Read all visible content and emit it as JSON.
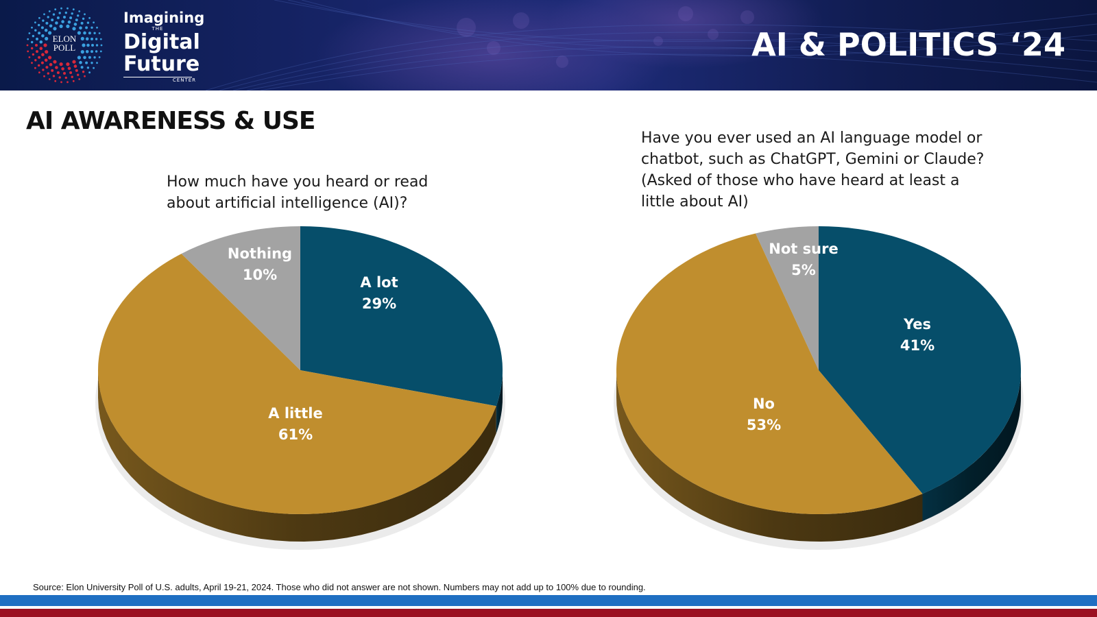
{
  "header": {
    "logo_text_line1": "ELON",
    "logo_text_line2": "POLL",
    "brand_line1": "Imagining",
    "brand_the": "THE",
    "brand_line2": "Digital",
    "brand_line3": "Future",
    "brand_center": "CENTER",
    "event_title": "AI & POLITICS ‘24"
  },
  "section_title": "AI AWARENESS & USE",
  "colors": {
    "navy": "#064e6a",
    "gold": "#c08e2e",
    "gray": "#a3a3a3"
  },
  "chart_data": [
    {
      "type": "pie",
      "title": "How much have you heard or read about artificial intelligence (AI)?",
      "title_lines": [
        "How much have you heard or read",
        "about artificial intelligence (AI)?"
      ],
      "slices": [
        {
          "label": "A lot",
          "value": 29,
          "display": "29%",
          "color": "#064e6a"
        },
        {
          "label": "A little",
          "value": 61,
          "display": "61%",
          "color": "#c08e2e"
        },
        {
          "label": "Nothing",
          "value": 10,
          "display": "10%",
          "color": "#a3a3a3"
        }
      ]
    },
    {
      "type": "pie",
      "title": "Have you ever used an AI language model or chatbot, such as ChatGPT, Gemini or Claude? (Asked of those who have heard at least a little about AI)",
      "title_lines": [
        "Have you ever used an AI language model or",
        "chatbot, such as ChatGPT, Gemini or Claude?",
        "(Asked of those who have heard at least a",
        "little about AI)"
      ],
      "slices": [
        {
          "label": "Yes",
          "value": 41,
          "display": "41%",
          "color": "#064e6a"
        },
        {
          "label": "No",
          "value": 53,
          "display": "53%",
          "color": "#c08e2e"
        },
        {
          "label": "Not sure",
          "value": 5,
          "display": "5%",
          "color": "#a3a3a3"
        }
      ]
    }
  ],
  "source_note": "Source: Elon University Poll of U.S. adults, April 19-21, 2024. Those who did not answer are not shown. Numbers may not add up to 100% due to rounding."
}
